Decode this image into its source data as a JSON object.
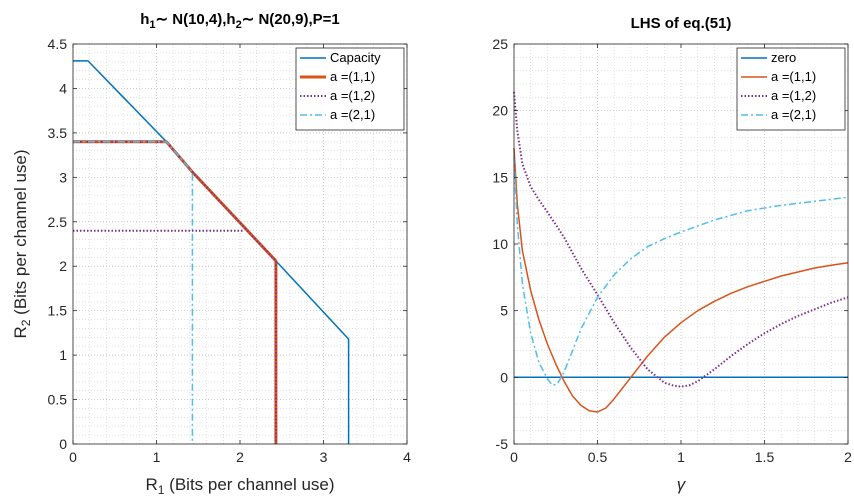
{
  "chart_data": [
    {
      "type": "line",
      "title": "h₁∼ N(10,4),h₂∼ N(20,9),P=1",
      "title_parts": {
        "a": "h",
        "a_sub": "1",
        "b": "∼ N(10,4),h",
        "b_sub": "2",
        "c": "∼ N(20,9),P=1"
      },
      "xlabel_parts": {
        "a": "R",
        "sub": "1",
        "b": " (Bits per channel use)"
      },
      "ylabel_parts": {
        "a": "R",
        "sub": "2",
        "b": " (Bits per channel use)"
      },
      "xlim": [
        0,
        4
      ],
      "ylim": [
        0,
        4.5
      ],
      "xticks": [
        "0",
        "1",
        "2",
        "3",
        "4"
      ],
      "yticks": [
        "0",
        "0.5",
        "1",
        "1.5",
        "2",
        "2.5",
        "3",
        "3.5",
        "4",
        "4.5"
      ],
      "grid": "minor dotted",
      "legend_position": "top-right",
      "series": [
        {
          "name": "Capacity",
          "color": "#0072BD",
          "style": "solid",
          "x": [
            0,
            0.18,
            1.12,
            1.43,
            2.43,
            3.3,
            3.3
          ],
          "y": [
            4.31,
            4.31,
            3.4,
            3.06,
            2.06,
            1.18,
            0
          ]
        },
        {
          "name": "a =(1,1)",
          "color": "#D95319",
          "style": "thick",
          "x": [
            0,
            1.12,
            1.43,
            2.43,
            2.43
          ],
          "y": [
            3.4,
            3.4,
            3.06,
            2.06,
            0
          ]
        },
        {
          "name": "a =(1,2)",
          "color": "#7E2F8E",
          "style": "dotted",
          "x": [
            0,
            1.12,
            1.43,
            2.43,
            2.43
          ],
          "y": [
            3.4,
            3.4,
            3.06,
            2.06,
            0
          ]
        },
        {
          "name": "a =(2,1)",
          "color": "#4DBEEE",
          "style": "dashdot",
          "x": [
            0,
            1.12,
            1.43,
            1.43
          ],
          "y": [
            3.4,
            3.4,
            3.06,
            0
          ]
        },
        {
          "name": "",
          "color": "#7E2F8E",
          "style": "dotted",
          "legend": false,
          "x": [
            0,
            2.05
          ],
          "y": [
            2.4,
            2.4
          ]
        }
      ]
    },
    {
      "type": "line",
      "title": "LHS of eq.(51)",
      "xlabel": "γ",
      "xlim": [
        0,
        2
      ],
      "ylim": [
        -5,
        25
      ],
      "xticks": [
        "0",
        "0.5",
        "1",
        "1.5",
        "2"
      ],
      "yticks": [
        "-5",
        "0",
        "5",
        "10",
        "15",
        "20",
        "25"
      ],
      "grid": "minor dotted",
      "legend_position": "top-right",
      "series": [
        {
          "name": "zero",
          "color": "#0072BD",
          "style": "solid",
          "x": [
            0,
            2
          ],
          "y": [
            0,
            0
          ]
        },
        {
          "name": "a =(1,1)",
          "color": "#D95319",
          "style": "solid",
          "x": [
            0.0,
            0.02,
            0.05,
            0.1,
            0.15,
            0.2,
            0.25,
            0.3,
            0.35,
            0.4,
            0.45,
            0.5,
            0.55,
            0.6,
            0.7,
            0.8,
            0.9,
            1.0,
            1.1,
            1.2,
            1.3,
            1.4,
            1.5,
            1.6,
            1.7,
            1.8,
            1.9,
            2.0
          ],
          "y": [
            17.2,
            13.0,
            9.5,
            6.5,
            4.3,
            2.5,
            1.0,
            -0.3,
            -1.4,
            -2.1,
            -2.5,
            -2.6,
            -2.3,
            -1.6,
            0.0,
            1.6,
            3.0,
            4.1,
            5.0,
            5.7,
            6.3,
            6.8,
            7.2,
            7.6,
            7.9,
            8.2,
            8.4,
            8.6
          ]
        },
        {
          "name": "a =(1,2)",
          "color": "#7E2F8E",
          "style": "dotted",
          "x": [
            0.0,
            0.02,
            0.05,
            0.1,
            0.15,
            0.2,
            0.3,
            0.4,
            0.5,
            0.6,
            0.7,
            0.8,
            0.9,
            0.95,
            1.0,
            1.05,
            1.1,
            1.2,
            1.3,
            1.4,
            1.5,
            1.6,
            1.7,
            1.8,
            1.9,
            2.0
          ],
          "y": [
            21.4,
            18.5,
            16.0,
            14.3,
            13.3,
            12.4,
            10.5,
            8.2,
            6.2,
            4.1,
            2.2,
            0.6,
            -0.4,
            -0.6,
            -0.7,
            -0.6,
            -0.3,
            0.6,
            1.6,
            2.5,
            3.3,
            4.0,
            4.6,
            5.1,
            5.6,
            6.0
          ]
        },
        {
          "name": "a =(2,1)",
          "color": "#4DBEEE",
          "style": "dashdot",
          "x": [
            0.0,
            0.02,
            0.05,
            0.1,
            0.15,
            0.2,
            0.23,
            0.26,
            0.3,
            0.35,
            0.4,
            0.5,
            0.6,
            0.7,
            0.8,
            0.9,
            1.0,
            1.2,
            1.4,
            1.6,
            1.8,
            2.0
          ],
          "y": [
            16.5,
            11.5,
            7.0,
            3.3,
            1.1,
            -0.1,
            -0.6,
            -0.5,
            0.4,
            2.0,
            3.6,
            6.0,
            7.7,
            8.9,
            9.8,
            10.4,
            10.9,
            11.8,
            12.5,
            12.9,
            13.2,
            13.5
          ]
        }
      ]
    }
  ]
}
